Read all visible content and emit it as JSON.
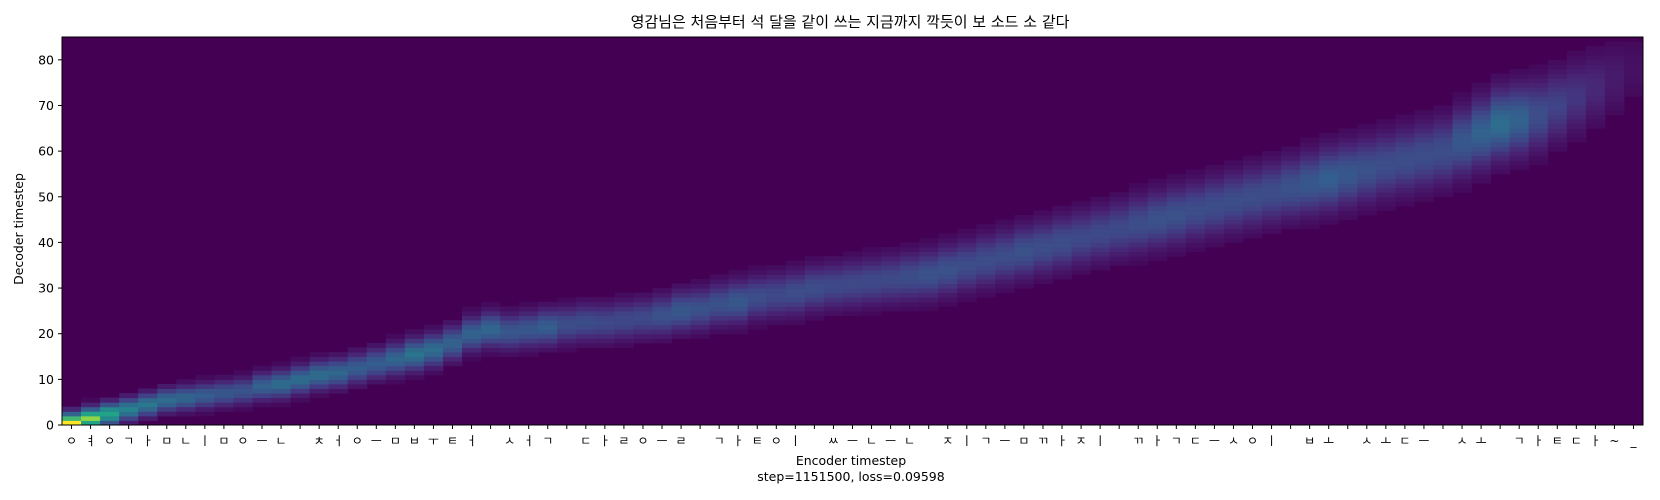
{
  "chart_data": {
    "type": "heatmap",
    "title": "영감님은 처음부터 석 달을 같이 쓰는 지금까지 깍듯이 보 소드 소 같다",
    "xlabel": "Encoder timestep",
    "ylabel": "Decoder timestep",
    "caption": "step=1151500, loss=0.09598",
    "x_tick_labels": [
      "ㅇ",
      "ㅕ",
      "ㅇ",
      "ㄱ",
      "ㅏ",
      "ㅁ",
      "ㄴ",
      "ㅣ",
      "ㅁ",
      "ㅇ",
      "ㅡ",
      "ㄴ",
      " ",
      "ㅊ",
      "ㅓ",
      "ㅇ",
      "ㅡ",
      "ㅁ",
      "ㅂ",
      "ㅜ",
      "ㅌ",
      "ㅓ",
      " ",
      "ㅅ",
      "ㅓ",
      "ㄱ",
      " ",
      "ㄷ",
      "ㅏ",
      "ㄹ",
      "ㅇ",
      "ㅡ",
      "ㄹ",
      " ",
      "ㄱ",
      "ㅏ",
      "ㅌ",
      "ㅇ",
      "ㅣ",
      " ",
      "ㅆ",
      "ㅡ",
      "ㄴ",
      "ㅡ",
      "ㄴ",
      " ",
      "ㅈ",
      "ㅣ",
      "ㄱ",
      "ㅡ",
      "ㅁ",
      "ㄲ",
      "ㅏ",
      "ㅈ",
      "ㅣ",
      " ",
      "ㄲ",
      "ㅏ",
      "ㄱ",
      "ㄷ",
      "ㅡ",
      "ㅅ",
      "ㅇ",
      "ㅣ",
      " ",
      "ㅂ",
      "ㅗ",
      " ",
      "ㅅ",
      "ㅗ",
      "ㄷ",
      "ㅡ",
      " ",
      "ㅅ",
      "ㅗ",
      " ",
      "ㄱ",
      "ㅏ",
      "ㅌ",
      "ㄷ",
      "ㅏ",
      "~",
      "_"
    ],
    "y_ticks": [
      0,
      10,
      20,
      30,
      40,
      50,
      60,
      70,
      80
    ],
    "x_range": [
      0,
      83
    ],
    "y_range": [
      0,
      85
    ],
    "colormap": "viridis",
    "background_color": "#440154",
    "alignment_path": [
      [
        0,
        0.5,
        1.0
      ],
      [
        1,
        1.5,
        0.9
      ],
      [
        2,
        2.5,
        0.72
      ],
      [
        3,
        3.5,
        0.55
      ],
      [
        4,
        4.5,
        0.5
      ],
      [
        5,
        5.5,
        0.45
      ],
      [
        6,
        6,
        0.42
      ],
      [
        7,
        6.5,
        0.38
      ],
      [
        8,
        7,
        0.35
      ],
      [
        9,
        7.5,
        0.33
      ],
      [
        10,
        8.5,
        0.4
      ],
      [
        11,
        9,
        0.45
      ],
      [
        12,
        10,
        0.45
      ],
      [
        13,
        11,
        0.45
      ],
      [
        14,
        11.5,
        0.42
      ],
      [
        15,
        12.5,
        0.38
      ],
      [
        16,
        13.5,
        0.38
      ],
      [
        17,
        14.5,
        0.42
      ],
      [
        18,
        15.5,
        0.48
      ],
      [
        19,
        16.5,
        0.45
      ],
      [
        20,
        18,
        0.4
      ],
      [
        21,
        20,
        0.4
      ],
      [
        22,
        21,
        0.42
      ],
      [
        23,
        20.5,
        0.35
      ],
      [
        24,
        21,
        0.35
      ],
      [
        25,
        21.5,
        0.38
      ],
      [
        26,
        22,
        0.3
      ],
      [
        27,
        22.5,
        0.3
      ],
      [
        28,
        22.5,
        0.28
      ],
      [
        29,
        23,
        0.28
      ],
      [
        30,
        23.5,
        0.28
      ],
      [
        31,
        24,
        0.32
      ],
      [
        32,
        25,
        0.35
      ],
      [
        33,
        25.5,
        0.32
      ],
      [
        34,
        26.5,
        0.32
      ],
      [
        35,
        27,
        0.35
      ],
      [
        36,
        28,
        0.3
      ],
      [
        37,
        28.5,
        0.28
      ],
      [
        38,
        29,
        0.3
      ],
      [
        39,
        30,
        0.3
      ],
      [
        40,
        30.5,
        0.28
      ],
      [
        41,
        31,
        0.28
      ],
      [
        42,
        31.5,
        0.28
      ],
      [
        43,
        32,
        0.28
      ],
      [
        44,
        32.5,
        0.3
      ],
      [
        45,
        33,
        0.32
      ],
      [
        46,
        34,
        0.32
      ],
      [
        47,
        35,
        0.3
      ],
      [
        48,
        36,
        0.3
      ],
      [
        49,
        37,
        0.3
      ],
      [
        50,
        38,
        0.32
      ],
      [
        51,
        39,
        0.3
      ],
      [
        52,
        40,
        0.3
      ],
      [
        53,
        41,
        0.28
      ],
      [
        54,
        42,
        0.28
      ],
      [
        55,
        43,
        0.28
      ],
      [
        56,
        44,
        0.3
      ],
      [
        57,
        45,
        0.32
      ],
      [
        58,
        46,
        0.32
      ],
      [
        59,
        47,
        0.3
      ],
      [
        60,
        48,
        0.3
      ],
      [
        61,
        49,
        0.3
      ],
      [
        62,
        50,
        0.3
      ],
      [
        63,
        51,
        0.3
      ],
      [
        64,
        52,
        0.32
      ],
      [
        65,
        53,
        0.35
      ],
      [
        66,
        54,
        0.38
      ],
      [
        67,
        55,
        0.35
      ],
      [
        68,
        56,
        0.32
      ],
      [
        69,
        57,
        0.3
      ],
      [
        70,
        58,
        0.3
      ],
      [
        71,
        59,
        0.3
      ],
      [
        72,
        60,
        0.3
      ],
      [
        73,
        62,
        0.35
      ],
      [
        74,
        64,
        0.4
      ],
      [
        75,
        66,
        0.45
      ],
      [
        76,
        67,
        0.4
      ],
      [
        77,
        68,
        0.3
      ],
      [
        78,
        70,
        0.25
      ],
      [
        79,
        72,
        0.2
      ],
      [
        80,
        74,
        0.15
      ],
      [
        81,
        76,
        0.1
      ],
      [
        82,
        78,
        0.06
      ]
    ]
  }
}
